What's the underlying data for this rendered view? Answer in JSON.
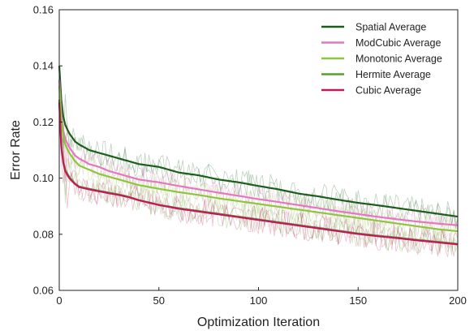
{
  "chart_data": {
    "type": "line",
    "xlabel": "Optimization Iteration",
    "ylabel": "Error Rate",
    "xlim": [
      0,
      200
    ],
    "ylim": [
      0.06,
      0.16
    ],
    "xticks": [
      0,
      50,
      100,
      150,
      200
    ],
    "yticks": [
      0.06,
      0.08,
      0.1,
      0.12,
      0.14,
      0.16
    ],
    "xtick_labels": [
      "0",
      "50",
      "100",
      "150",
      "200"
    ],
    "ytick_labels": [
      "0.06",
      "0.08",
      "0.10",
      "0.12",
      "0.14",
      "0.16"
    ],
    "grid": false,
    "legend": {
      "placement": "top-right"
    },
    "x": [
      0,
      1,
      2,
      3,
      5,
      8,
      10,
      15,
      20,
      25,
      30,
      35,
      40,
      50,
      60,
      70,
      80,
      90,
      100,
      110,
      120,
      130,
      140,
      150,
      160,
      170,
      180,
      190,
      200
    ],
    "series": [
      {
        "name": "Spatial Average",
        "color": "#1a5e1a",
        "values": [
          0.14,
          0.128,
          0.122,
          0.119,
          0.116,
          0.113,
          0.112,
          0.11,
          0.109,
          0.108,
          0.107,
          0.106,
          0.105,
          0.104,
          0.102,
          0.101,
          0.0995,
          0.0985,
          0.0972,
          0.096,
          0.0945,
          0.0935,
          0.0923,
          0.0912,
          0.0903,
          0.0893,
          0.0883,
          0.0873,
          0.0863
        ]
      },
      {
        "name": "ModCubic Average",
        "color": "#e377c2",
        "values": [
          0.135,
          0.123,
          0.117,
          0.114,
          0.111,
          0.108,
          0.107,
          0.105,
          0.104,
          0.1025,
          0.1015,
          0.1005,
          0.0995,
          0.0985,
          0.0972,
          0.096,
          0.0948,
          0.0937,
          0.0925,
          0.0915,
          0.0904,
          0.0893,
          0.0882,
          0.0872,
          0.0862,
          0.0853,
          0.0845,
          0.0838,
          0.0832
        ]
      },
      {
        "name": "Monotonic Average",
        "color": "#8cc63f",
        "values": [
          0.133,
          0.121,
          0.115,
          0.112,
          0.109,
          0.106,
          0.1045,
          0.103,
          0.1015,
          0.1005,
          0.0995,
          0.0985,
          0.0975,
          0.0962,
          0.095,
          0.094,
          0.0928,
          0.0918,
          0.0908,
          0.0898,
          0.0888,
          0.0878,
          0.0868,
          0.0858,
          0.0848,
          0.0838,
          0.0828,
          0.0818,
          0.0811
        ]
      },
      {
        "name": "Hermite Average",
        "color": "#5a9e2f",
        "values": [
          0.128,
          0.112,
          0.106,
          0.103,
          0.1005,
          0.098,
          0.097,
          0.0962,
          0.0955,
          0.0948,
          0.0942,
          0.0933,
          0.0922,
          0.0905,
          0.0893,
          0.0883,
          0.0873,
          0.0863,
          0.0853,
          0.0843,
          0.0833,
          0.0823,
          0.0813,
          0.0803,
          0.0795,
          0.0788,
          0.078,
          0.0773,
          0.0766
        ]
      },
      {
        "name": "Cubic Average",
        "color": "#c2185b",
        "values": [
          0.127,
          0.111,
          0.1055,
          0.1025,
          0.1,
          0.0978,
          0.0968,
          0.096,
          0.0953,
          0.0946,
          0.094,
          0.0932,
          0.0921,
          0.0904,
          0.0891,
          0.0881,
          0.0871,
          0.0861,
          0.0851,
          0.0841,
          0.0831,
          0.0821,
          0.0811,
          0.0801,
          0.0793,
          0.0786,
          0.0778,
          0.0771,
          0.0764
        ]
      }
    ]
  }
}
